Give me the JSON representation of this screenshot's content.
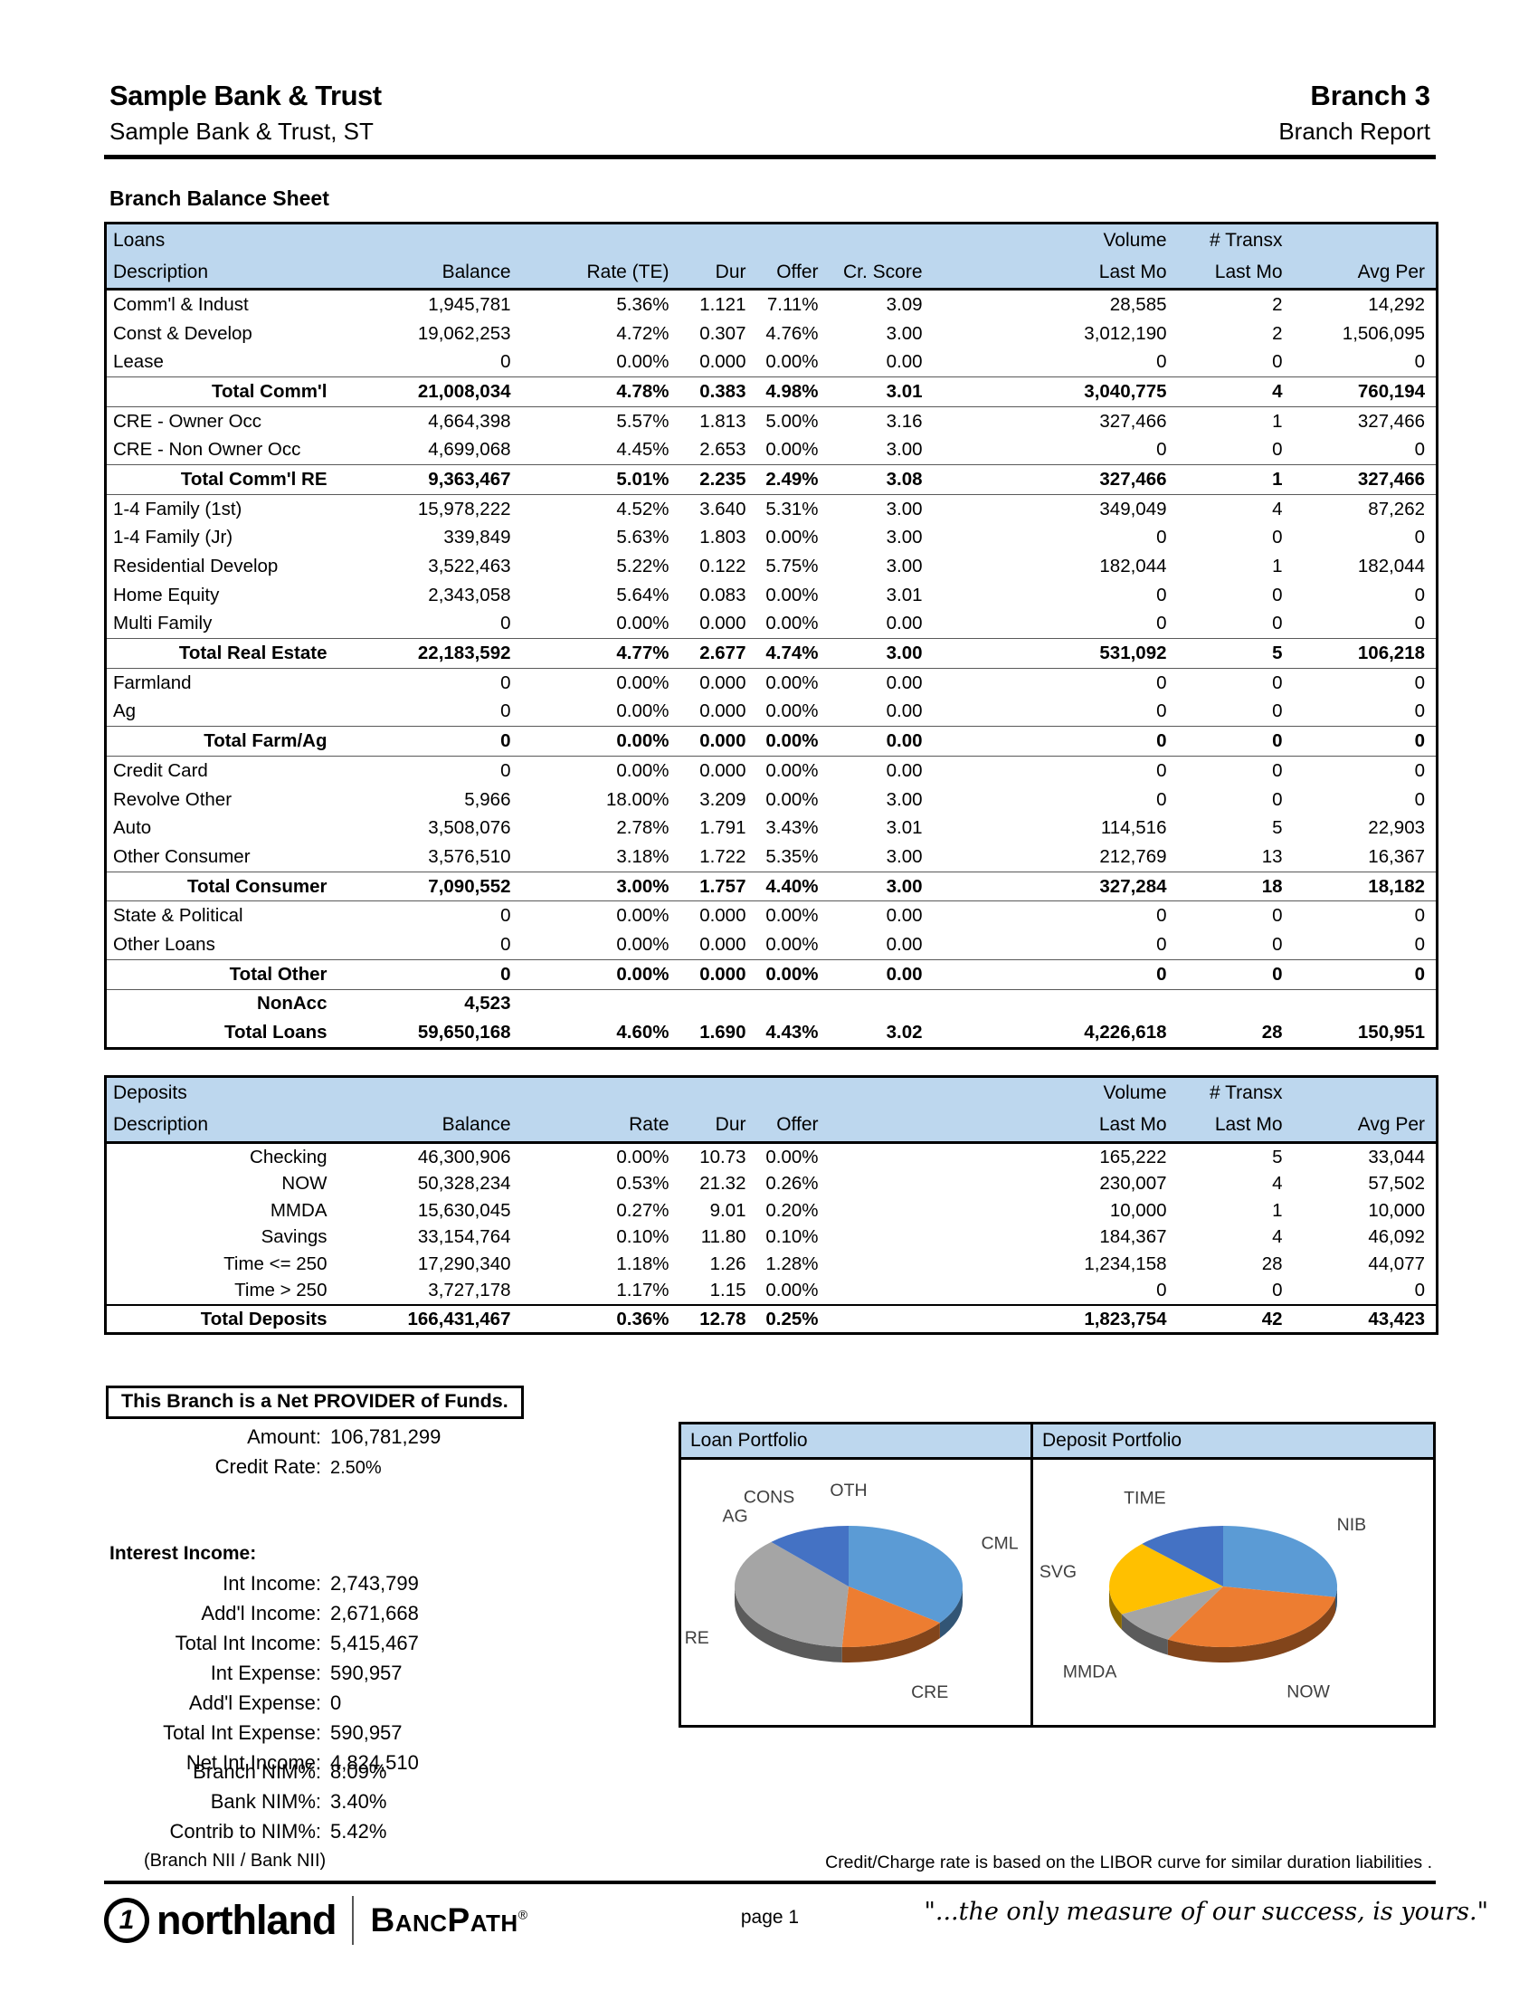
{
  "header": {
    "bank_name": "Sample Bank & Trust",
    "bank_sub": "Sample Bank & Trust, ST",
    "branch": "Branch 3",
    "report_type": "Branch Report"
  },
  "section_title": "Branch Balance Sheet",
  "loans_table": {
    "group_label": "Loans",
    "volume_label": "Volume",
    "transx_label": "# Transx",
    "columns": [
      "Description",
      "Balance",
      "Rate (TE)",
      "Dur",
      "Offer",
      "Cr. Score",
      "Last Mo",
      "Last Mo",
      "Avg Per"
    ],
    "rows": [
      {
        "c": [
          "Comm'l & Indust",
          "1,945,781",
          "5.36%",
          "1.121",
          "7.11%",
          "3.09",
          "28,585",
          "2",
          "14,292"
        ],
        "s": ""
      },
      {
        "c": [
          "Const & Develop",
          "19,062,253",
          "4.72%",
          "0.307",
          "4.76%",
          "3.00",
          "3,012,190",
          "2",
          "1,506,095"
        ],
        "s": ""
      },
      {
        "c": [
          "Lease",
          "0",
          "0.00%",
          "0.000",
          "0.00%",
          "0.00",
          "0",
          "0",
          "0"
        ],
        "s": ""
      },
      {
        "c": [
          "Total Comm'l",
          "21,008,034",
          "4.78%",
          "0.383",
          "4.98%",
          "3.01",
          "3,040,775",
          "4",
          "760,194"
        ],
        "s": "t"
      },
      {
        "c": [
          "CRE - Owner Occ",
          "4,664,398",
          "5.57%",
          "1.813",
          "5.00%",
          "3.16",
          "327,466",
          "1",
          "327,466"
        ],
        "s": ""
      },
      {
        "c": [
          "CRE - Non Owner Occ",
          "4,699,068",
          "4.45%",
          "2.653",
          "0.00%",
          "3.00",
          "0",
          "0",
          "0"
        ],
        "s": ""
      },
      {
        "c": [
          "Total Comm'l RE",
          "9,363,467",
          "5.01%",
          "2.235",
          "2.49%",
          "3.08",
          "327,466",
          "1",
          "327,466"
        ],
        "s": "t"
      },
      {
        "c": [
          "1-4 Family (1st)",
          "15,978,222",
          "4.52%",
          "3.640",
          "5.31%",
          "3.00",
          "349,049",
          "4",
          "87,262"
        ],
        "s": ""
      },
      {
        "c": [
          "1-4 Family (Jr)",
          "339,849",
          "5.63%",
          "1.803",
          "0.00%",
          "3.00",
          "0",
          "0",
          "0"
        ],
        "s": ""
      },
      {
        "c": [
          "Residential Develop",
          "3,522,463",
          "5.22%",
          "0.122",
          "5.75%",
          "3.00",
          "182,044",
          "1",
          "182,044"
        ],
        "s": ""
      },
      {
        "c": [
          "Home Equity",
          "2,343,058",
          "5.64%",
          "0.083",
          "0.00%",
          "3.01",
          "0",
          "0",
          "0"
        ],
        "s": ""
      },
      {
        "c": [
          "Multi Family",
          "0",
          "0.00%",
          "0.000",
          "0.00%",
          "0.00",
          "0",
          "0",
          "0"
        ],
        "s": ""
      },
      {
        "c": [
          "Total Real Estate",
          "22,183,592",
          "4.77%",
          "2.677",
          "4.74%",
          "3.00",
          "531,092",
          "5",
          "106,218"
        ],
        "s": "t"
      },
      {
        "c": [
          "Farmland",
          "0",
          "0.00%",
          "0.000",
          "0.00%",
          "0.00",
          "0",
          "0",
          "0"
        ],
        "s": ""
      },
      {
        "c": [
          "Ag",
          "0",
          "0.00%",
          "0.000",
          "0.00%",
          "0.00",
          "0",
          "0",
          "0"
        ],
        "s": ""
      },
      {
        "c": [
          "Total Farm/Ag",
          "0",
          "0.00%",
          "0.000",
          "0.00%",
          "0.00",
          "0",
          "0",
          "0"
        ],
        "s": "t"
      },
      {
        "c": [
          "Credit Card",
          "0",
          "0.00%",
          "0.000",
          "0.00%",
          "0.00",
          "0",
          "0",
          "0"
        ],
        "s": ""
      },
      {
        "c": [
          "Revolve Other",
          "5,966",
          "18.00%",
          "3.209",
          "0.00%",
          "3.00",
          "0",
          "0",
          "0"
        ],
        "s": ""
      },
      {
        "c": [
          "Auto",
          "3,508,076",
          "2.78%",
          "1.791",
          "3.43%",
          "3.01",
          "114,516",
          "5",
          "22,903"
        ],
        "s": ""
      },
      {
        "c": [
          "Other Consumer",
          "3,576,510",
          "3.18%",
          "1.722",
          "5.35%",
          "3.00",
          "212,769",
          "13",
          "16,367"
        ],
        "s": ""
      },
      {
        "c": [
          "Total Consumer",
          "7,090,552",
          "3.00%",
          "1.757",
          "4.40%",
          "3.00",
          "327,284",
          "18",
          "18,182"
        ],
        "s": "t"
      },
      {
        "c": [
          "State & Political",
          "0",
          "0.00%",
          "0.000",
          "0.00%",
          "0.00",
          "0",
          "0",
          "0"
        ],
        "s": ""
      },
      {
        "c": [
          "Other Loans",
          "0",
          "0.00%",
          "0.000",
          "0.00%",
          "0.00",
          "0",
          "0",
          "0"
        ],
        "s": ""
      },
      {
        "c": [
          "Total Other",
          "0",
          "0.00%",
          "0.000",
          "0.00%",
          "0.00",
          "0",
          "0",
          "0"
        ],
        "s": "t"
      },
      {
        "c": [
          "NonAcc",
          "4,523",
          "",
          "",
          "",
          "",
          "",
          "",
          ""
        ],
        "s": "b"
      },
      {
        "c": [
          "Total Loans",
          "59,650,168",
          "4.60%",
          "1.690",
          "4.43%",
          "3.02",
          "4,226,618",
          "28",
          "150,951"
        ],
        "s": "b"
      }
    ]
  },
  "deposits_table": {
    "group_label": "Deposits",
    "volume_label": "Volume",
    "transx_label": "# Transx",
    "columns": [
      "Description",
      "Balance",
      "Rate",
      "Dur",
      "Offer",
      "",
      "Last Mo",
      "Last Mo",
      "Avg Per"
    ],
    "rows": [
      {
        "c": [
          "Checking",
          "46,300,906",
          "0.00%",
          "10.73",
          "0.00%",
          "",
          "165,222",
          "5",
          "33,044"
        ],
        "s": ""
      },
      {
        "c": [
          "NOW",
          "50,328,234",
          "0.53%",
          "21.32",
          "0.26%",
          "",
          "230,007",
          "4",
          "57,502"
        ],
        "s": ""
      },
      {
        "c": [
          "MMDA",
          "15,630,045",
          "0.27%",
          "9.01",
          "0.20%",
          "",
          "10,000",
          "1",
          "10,000"
        ],
        "s": ""
      },
      {
        "c": [
          "Savings",
          "33,154,764",
          "0.10%",
          "11.80",
          "0.10%",
          "",
          "184,367",
          "4",
          "46,092"
        ],
        "s": ""
      },
      {
        "c": [
          "Time <= 250",
          "17,290,340",
          "1.18%",
          "1.26",
          "1.28%",
          "",
          "1,234,158",
          "28",
          "44,077"
        ],
        "s": ""
      },
      {
        "c": [
          "Time > 250",
          "3,727,178",
          "1.17%",
          "1.15",
          "0.00%",
          "",
          "0",
          "0",
          "0"
        ],
        "s": ""
      },
      {
        "c": [
          "Total Deposits",
          "166,431,467",
          "0.36%",
          "12.78",
          "0.25%",
          "",
          "1,823,754",
          "42",
          "43,423"
        ],
        "s": "tt"
      }
    ]
  },
  "provider": {
    "message": "This Branch is a Net PROVIDER of Funds.",
    "lines": [
      {
        "label": "Amount:",
        "value": "106,781,299"
      },
      {
        "label": "Credit Rate:",
        "value": "2.50%"
      }
    ]
  },
  "interest_income": {
    "heading": "Interest Income:",
    "lines": [
      {
        "label": "Int Income:",
        "value": "2,743,799"
      },
      {
        "label": "Add'l Income:",
        "value": "2,671,668"
      },
      {
        "label": "Total Int Income:",
        "value": "5,415,467"
      },
      {
        "label": "Int Expense:",
        "value": "590,957"
      },
      {
        "label": "Add'l Expense:",
        "value": "0"
      },
      {
        "label": "Total Int Expense:",
        "value": "590,957"
      },
      {
        "label": "Net Int Income:",
        "value": "4,824,510"
      }
    ],
    "nim_lines": [
      {
        "label": "Branch NIM%:",
        "value": "8.09%"
      },
      {
        "label": "Bank NIM%:",
        "value": "3.40%"
      },
      {
        "label": "Contrib to NIM%:",
        "value": "5.42%"
      }
    ],
    "note": "(Branch NII / Bank NII)"
  },
  "chart_data": [
    {
      "type": "pie",
      "title": "Loan Portfolio",
      "style": "3d",
      "legend": "labels around slices",
      "labels": [
        "CML",
        "CRE",
        "RE",
        "AG",
        "CONS",
        "OTH"
      ],
      "values": [
        21008034,
        9363467,
        22183592,
        0,
        7090552,
        0
      ],
      "percent": [
        35.2,
        15.7,
        37.2,
        0.0,
        11.9,
        0.0
      ],
      "colors": [
        "#5B9BD5",
        "#ED7D31",
        "#A5A5A5",
        "#FFC000",
        "#4472C4",
        "#70AD47"
      ]
    },
    {
      "type": "pie",
      "title": "Deposit Portfolio",
      "style": "3d",
      "legend": "labels around slices",
      "labels": [
        "NIB",
        "NOW",
        "MMDA",
        "SVG",
        "TIME"
      ],
      "values": [
        46300906,
        50328234,
        15630045,
        33154764,
        21017518
      ],
      "percent": [
        27.8,
        30.2,
        9.4,
        19.9,
        12.6
      ],
      "colors": [
        "#5B9BD5",
        "#ED7D31",
        "#A5A5A5",
        "#FFC000",
        "#4472C4"
      ]
    }
  ],
  "footer": {
    "libor_note": "Credit/Charge rate is based on the LIBOR curve for similar duration liabilities .",
    "logo_one": "1",
    "logo_name": "northland",
    "logo_product": "BancPath",
    "logo_reg": "®",
    "page": "page 1",
    "quote": "\"...the only measure of our success, is yours.\""
  }
}
